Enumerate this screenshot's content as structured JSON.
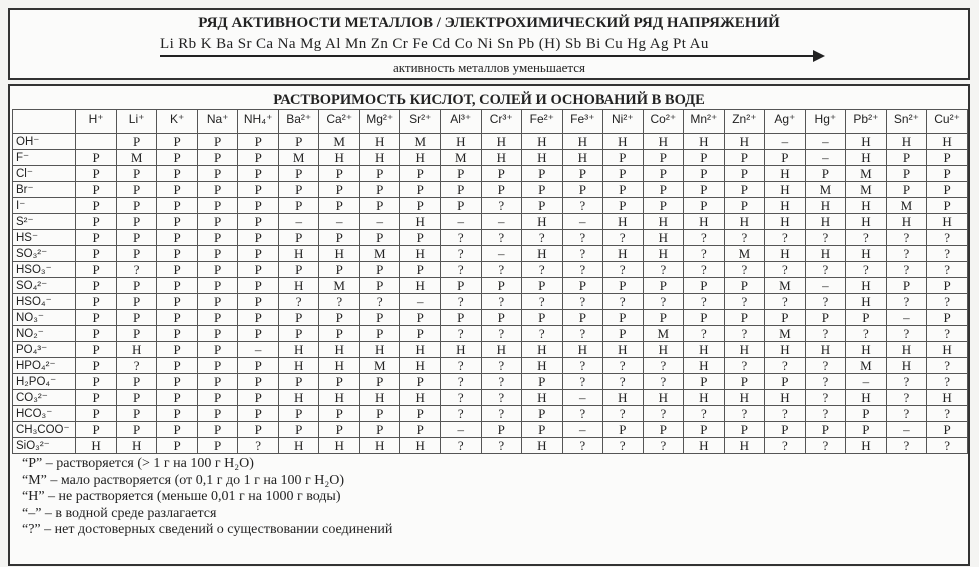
{
  "activity": {
    "title": "РЯД АКТИВНОСТИ МЕТАЛЛОВ / ЭЛЕКТРОХИМИЧЕСКИЙ РЯД НАПРЯЖЕНИЙ",
    "series": "Li Rb K Ba Sr Ca Na Mg Al Mn Zn Cr Fe Cd Co Ni Sn Pb (H) Sb Bi Cu Hg Ag Pt Au",
    "caption": "активность металлов уменьшается"
  },
  "solubility": {
    "title": "РАСТВОРИМОСТЬ КИСЛОТ, СОЛЕЙ И ОСНОВАНИЙ В ВОДЕ",
    "cations": [
      "H⁺",
      "Li⁺",
      "K⁺",
      "Na⁺",
      "NH₄⁺",
      "Ba²⁺",
      "Ca²⁺",
      "Mg²⁺",
      "Sr²⁺",
      "Al³⁺",
      "Cr³⁺",
      "Fe²⁺",
      "Fe³⁺",
      "Ni²⁺",
      "Co²⁺",
      "Mn²⁺",
      "Zn²⁺",
      "Ag⁺",
      "Hg⁺",
      "Pb²⁺",
      "Sn²⁺",
      "Cu²⁺"
    ],
    "rows": [
      {
        "anion": "OH⁻",
        "values": [
          "",
          "Р",
          "Р",
          "Р",
          "Р",
          "Р",
          "М",
          "Н",
          "М",
          "Н",
          "Н",
          "Н",
          "Н",
          "Н",
          "Н",
          "Н",
          "Н",
          "–",
          "–",
          "Н",
          "Н",
          "Н"
        ]
      },
      {
        "anion": "F⁻",
        "values": [
          "Р",
          "М",
          "Р",
          "Р",
          "Р",
          "М",
          "Н",
          "Н",
          "Н",
          "М",
          "Н",
          "Н",
          "Н",
          "Р",
          "Р",
          "Р",
          "Р",
          "Р",
          "–",
          "Н",
          "Р",
          "Р"
        ]
      },
      {
        "anion": "Cl⁻",
        "values": [
          "Р",
          "Р",
          "Р",
          "Р",
          "Р",
          "Р",
          "Р",
          "Р",
          "Р",
          "Р",
          "Р",
          "Р",
          "Р",
          "Р",
          "Р",
          "Р",
          "Р",
          "Н",
          "Р",
          "М",
          "Р",
          "Р"
        ]
      },
      {
        "anion": "Br⁻",
        "values": [
          "Р",
          "Р",
          "Р",
          "Р",
          "Р",
          "Р",
          "Р",
          "Р",
          "Р",
          "Р",
          "Р",
          "Р",
          "Р",
          "Р",
          "Р",
          "Р",
          "Р",
          "Н",
          "М",
          "М",
          "Р",
          "Р"
        ]
      },
      {
        "anion": "I⁻",
        "values": [
          "Р",
          "Р",
          "Р",
          "Р",
          "Р",
          "Р",
          "Р",
          "Р",
          "Р",
          "Р",
          "?",
          "Р",
          "?",
          "Р",
          "Р",
          "Р",
          "Р",
          "Н",
          "Н",
          "Н",
          "М",
          "Р"
        ]
      },
      {
        "anion": "S²⁻",
        "values": [
          "Р",
          "Р",
          "Р",
          "Р",
          "Р",
          "–",
          "–",
          "–",
          "Н",
          "–",
          "–",
          "Н",
          "–",
          "Н",
          "Н",
          "Н",
          "Н",
          "Н",
          "Н",
          "Н",
          "Н",
          "Н"
        ]
      },
      {
        "anion": "HS⁻",
        "values": [
          "Р",
          "Р",
          "Р",
          "Р",
          "Р",
          "Р",
          "Р",
          "Р",
          "Р",
          "?",
          "?",
          "?",
          "?",
          "?",
          "Н",
          "?",
          "?",
          "?",
          "?",
          "?",
          "?",
          "?"
        ]
      },
      {
        "anion": "SO₃²⁻",
        "values": [
          "Р",
          "Р",
          "Р",
          "Р",
          "Р",
          "Н",
          "Н",
          "М",
          "Н",
          "?",
          "–",
          "Н",
          "?",
          "Н",
          "Н",
          "?",
          "М",
          "Н",
          "Н",
          "Н",
          "?",
          "?"
        ]
      },
      {
        "anion": "HSO₃⁻",
        "values": [
          "Р",
          "?",
          "Р",
          "Р",
          "Р",
          "Р",
          "Р",
          "Р",
          "Р",
          "?",
          "?",
          "?",
          "?",
          "?",
          "?",
          "?",
          "?",
          "?",
          "?",
          "?",
          "?",
          "?"
        ]
      },
      {
        "anion": "SO₄²⁻",
        "values": [
          "Р",
          "Р",
          "Р",
          "Р",
          "Р",
          "Н",
          "М",
          "Р",
          "Н",
          "Р",
          "Р",
          "Р",
          "Р",
          "Р",
          "Р",
          "Р",
          "Р",
          "М",
          "–",
          "Н",
          "Р",
          "Р"
        ]
      },
      {
        "anion": "HSO₄⁻",
        "values": [
          "Р",
          "Р",
          "Р",
          "Р",
          "Р",
          "?",
          "?",
          "?",
          "–",
          "?",
          "?",
          "?",
          "?",
          "?",
          "?",
          "?",
          "?",
          "?",
          "?",
          "Н",
          "?",
          "?"
        ]
      },
      {
        "anion": "NO₃⁻",
        "values": [
          "Р",
          "Р",
          "Р",
          "Р",
          "Р",
          "Р",
          "Р",
          "Р",
          "Р",
          "Р",
          "Р",
          "Р",
          "Р",
          "Р",
          "Р",
          "Р",
          "Р",
          "Р",
          "Р",
          "Р",
          "–",
          "Р"
        ]
      },
      {
        "anion": "NO₂⁻",
        "values": [
          "Р",
          "Р",
          "Р",
          "Р",
          "Р",
          "Р",
          "Р",
          "Р",
          "Р",
          "?",
          "?",
          "?",
          "?",
          "Р",
          "М",
          "?",
          "?",
          "М",
          "?",
          "?",
          "?",
          "?"
        ]
      },
      {
        "anion": "PO₄³⁻",
        "values": [
          "Р",
          "Н",
          "Р",
          "Р",
          "–",
          "Н",
          "Н",
          "Н",
          "Н",
          "Н",
          "Н",
          "Н",
          "Н",
          "Н",
          "Н",
          "Н",
          "Н",
          "Н",
          "Н",
          "Н",
          "Н",
          "Н"
        ]
      },
      {
        "anion": "HPO₄²⁻",
        "values": [
          "Р",
          "?",
          "Р",
          "Р",
          "Р",
          "Н",
          "Н",
          "М",
          "Н",
          "?",
          "?",
          "Н",
          "?",
          "?",
          "?",
          "Н",
          "?",
          "?",
          "?",
          "М",
          "Н",
          "?"
        ]
      },
      {
        "anion": "H₂PO₄⁻",
        "values": [
          "Р",
          "Р",
          "Р",
          "Р",
          "Р",
          "Р",
          "Р",
          "Р",
          "Р",
          "?",
          "?",
          "Р",
          "?",
          "?",
          "?",
          "Р",
          "Р",
          "Р",
          "?",
          "–",
          "?",
          "?"
        ]
      },
      {
        "anion": "CO₃²⁻",
        "values": [
          "Р",
          "Р",
          "Р",
          "Р",
          "Р",
          "Н",
          "Н",
          "Н",
          "Н",
          "?",
          "?",
          "Н",
          "–",
          "Н",
          "Н",
          "Н",
          "Н",
          "Н",
          "?",
          "Н",
          "?",
          "Н"
        ]
      },
      {
        "anion": "HCO₃⁻",
        "values": [
          "Р",
          "Р",
          "Р",
          "Р",
          "Р",
          "Р",
          "Р",
          "Р",
          "Р",
          "?",
          "?",
          "Р",
          "?",
          "?",
          "?",
          "?",
          "?",
          "?",
          "?",
          "Р",
          "?",
          "?"
        ]
      },
      {
        "anion": "CH₃COO⁻",
        "values": [
          "Р",
          "Р",
          "Р",
          "Р",
          "Р",
          "Р",
          "Р",
          "Р",
          "Р",
          "–",
          "Р",
          "Р",
          "–",
          "Р",
          "Р",
          "Р",
          "Р",
          "Р",
          "Р",
          "Р",
          "–",
          "Р"
        ]
      },
      {
        "anion": "SiO₃²⁻",
        "values": [
          "Н",
          "Н",
          "Р",
          "Р",
          "?",
          "Н",
          "Н",
          "Н",
          "Н",
          "?",
          "?",
          "Н",
          "?",
          "?",
          "?",
          "Н",
          "Н",
          "?",
          "?",
          "Н",
          "?",
          "?"
        ]
      }
    ]
  },
  "legend": [
    "“Р” – растворяется (> 1 г на 100 г H₂O)",
    "“М” – мало растворяется (от 0,1 г до 1 г на 100 г H₂O)",
    "“Н” – не растворяется (меньше 0,01 г на 1000 г воды)",
    "“–” – в водной среде разлагается",
    "“?” – нет достоверных сведений о существовании соединений"
  ]
}
